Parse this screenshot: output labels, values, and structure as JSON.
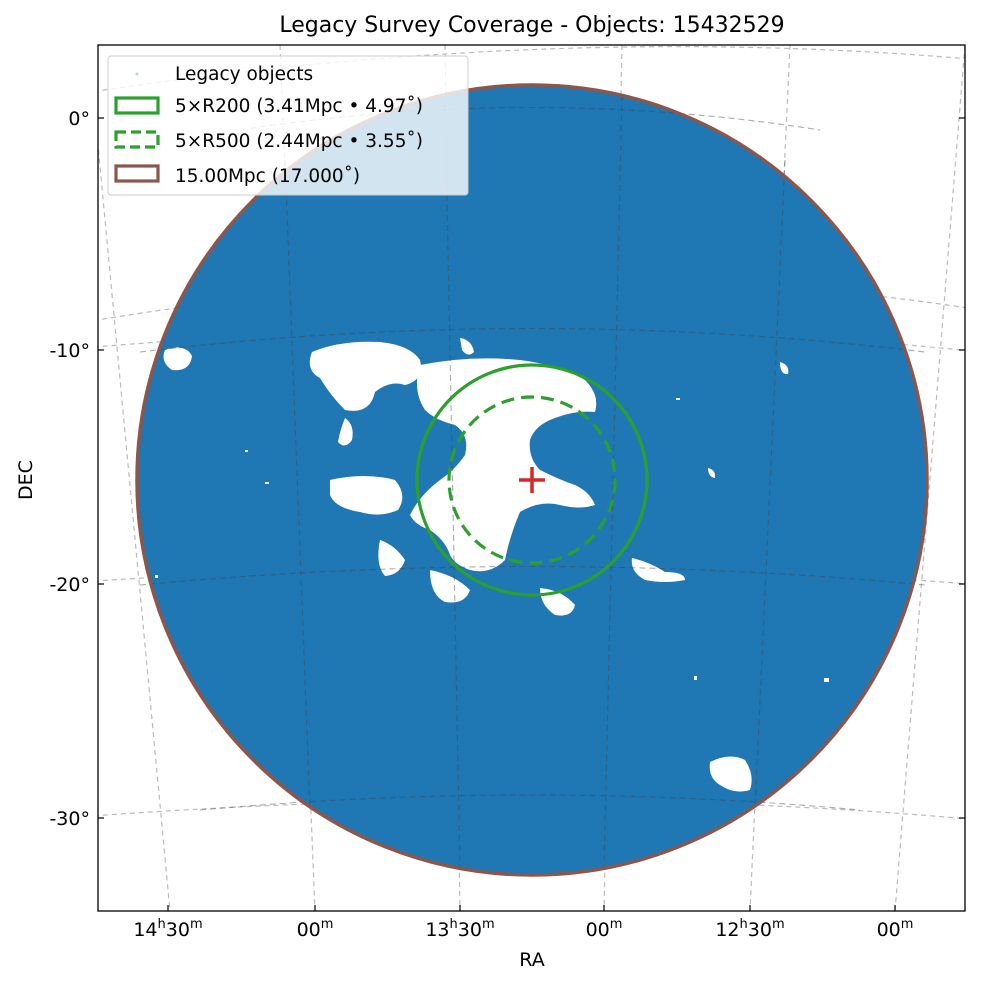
{
  "chart_data": {
    "type": "scatter",
    "title": "Legacy Survey Coverage - Objects: 15432529",
    "xlabel": "RA",
    "ylabel": "DEC",
    "projection": "sky (gnomonic-like)",
    "center": {
      "ra_deg": 199.0,
      "dec_deg": -15.5
    },
    "x_ticks": [
      {
        "main": "14",
        "sup1": "h",
        "rest": "30",
        "sup2": "m"
      },
      {
        "main": "00",
        "sup1": "m",
        "rest": "",
        "sup2": ""
      },
      {
        "main": "13",
        "sup1": "h",
        "rest": "30",
        "sup2": "m"
      },
      {
        "main": "00",
        "sup1": "m",
        "rest": "",
        "sup2": ""
      },
      {
        "main": "12",
        "sup1": "h",
        "rest": "30",
        "sup2": "m"
      },
      {
        "main": "00",
        "sup1": "m",
        "rest": "",
        "sup2": ""
      }
    ],
    "y_ticks": [
      "0°",
      "-10°",
      "-20°",
      "-30°"
    ],
    "grid": true,
    "legend_position": "top-left",
    "legend": [
      {
        "label": "Legacy objects",
        "style": "points"
      },
      {
        "label": "5×R200 (3.41Mpc • 4.97˚)",
        "style": "solid"
      },
      {
        "label": "5×R500 (2.44Mpc • 3.55˚)",
        "style": "dashed"
      },
      {
        "label": "15.00Mpc (17.000˚)",
        "style": "solid-brown"
      }
    ],
    "series": [
      {
        "name": "Legacy objects",
        "count": 15432529,
        "color": "#1f77b4"
      }
    ],
    "circles": [
      {
        "label": "5×R200",
        "radius_mpc": 3.41,
        "radius_deg": 4.97,
        "color": "#2ca02c",
        "dash": false
      },
      {
        "label": "5×R500",
        "radius_mpc": 2.44,
        "radius_deg": 3.55,
        "color": "#2ca02c",
        "dash": true
      },
      {
        "label": "15.00Mpc",
        "radius_mpc": 15.0,
        "radius_deg": 17.0,
        "color": "#8c564b",
        "dash": false
      }
    ],
    "center_marker": {
      "shape": "plus",
      "color": "#d62728"
    }
  },
  "colors": {
    "coverage": "#1f77b4",
    "r200": "#2ca02c",
    "r500": "#2ca02c",
    "outer": "#8c564b",
    "center": "#d62728",
    "grid": "#bbbbbb"
  }
}
